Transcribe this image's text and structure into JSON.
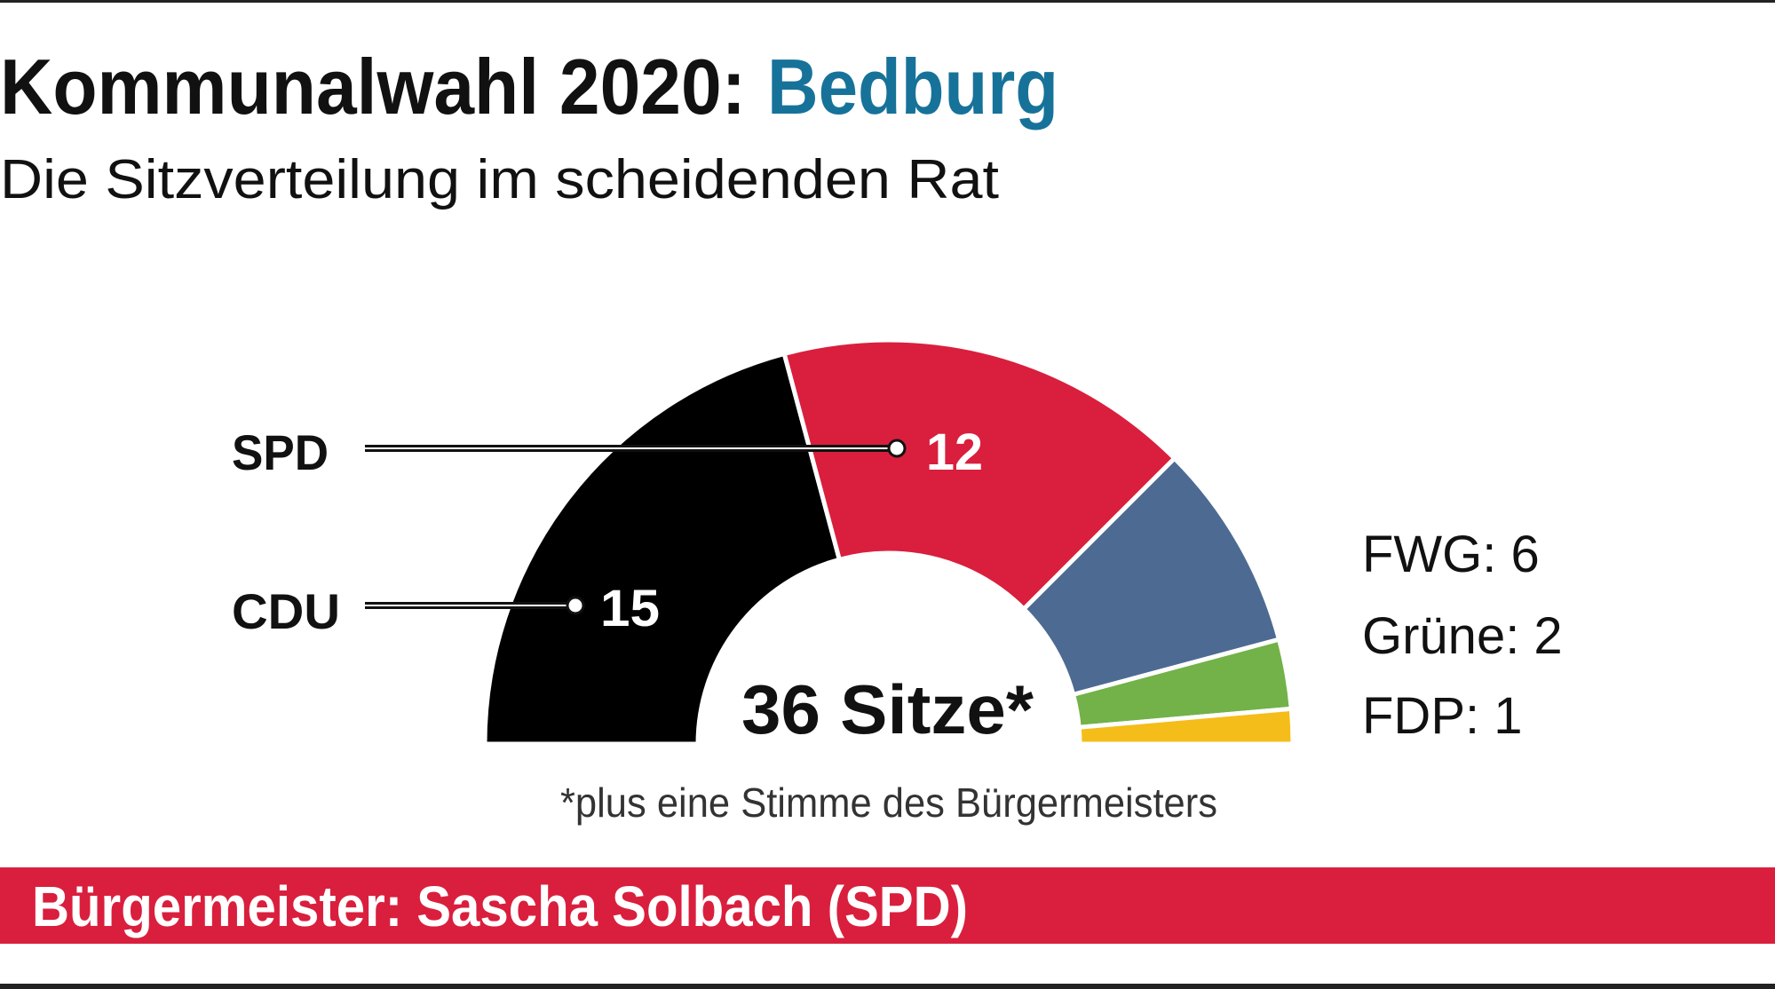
{
  "title": {
    "main": "Kommunalwahl 2020:",
    "place": "Bedburg"
  },
  "subtitle": "Die Sitzverteilung im scheidenden Rat",
  "chart_data": {
    "type": "pie",
    "variant": "half-donut (parliament seats)",
    "total_label": "36 Sitze*",
    "total": 36,
    "series": [
      {
        "name": "CDU",
        "value": 15,
        "color": "#000000",
        "label": "15"
      },
      {
        "name": "SPD",
        "value": 12,
        "color": "#d91f3d",
        "label": "12"
      },
      {
        "name": "FWG",
        "value": 6,
        "color": "#4d6b92",
        "label": "FWG: 6"
      },
      {
        "name": "Grüne",
        "value": 2,
        "color": "#72b248",
        "label": "Grüne: 2"
      },
      {
        "name": "FDP",
        "value": 1,
        "color": "#f5bd1a",
        "label": "FDP: 1"
      }
    ],
    "footnote": "*plus eine Stimme des Bürgermeisters"
  },
  "colors": {
    "accent": "#17729a",
    "banner": "#d91f3d"
  },
  "banner": "Bürgermeister: Sascha Solbach (SPD)"
}
